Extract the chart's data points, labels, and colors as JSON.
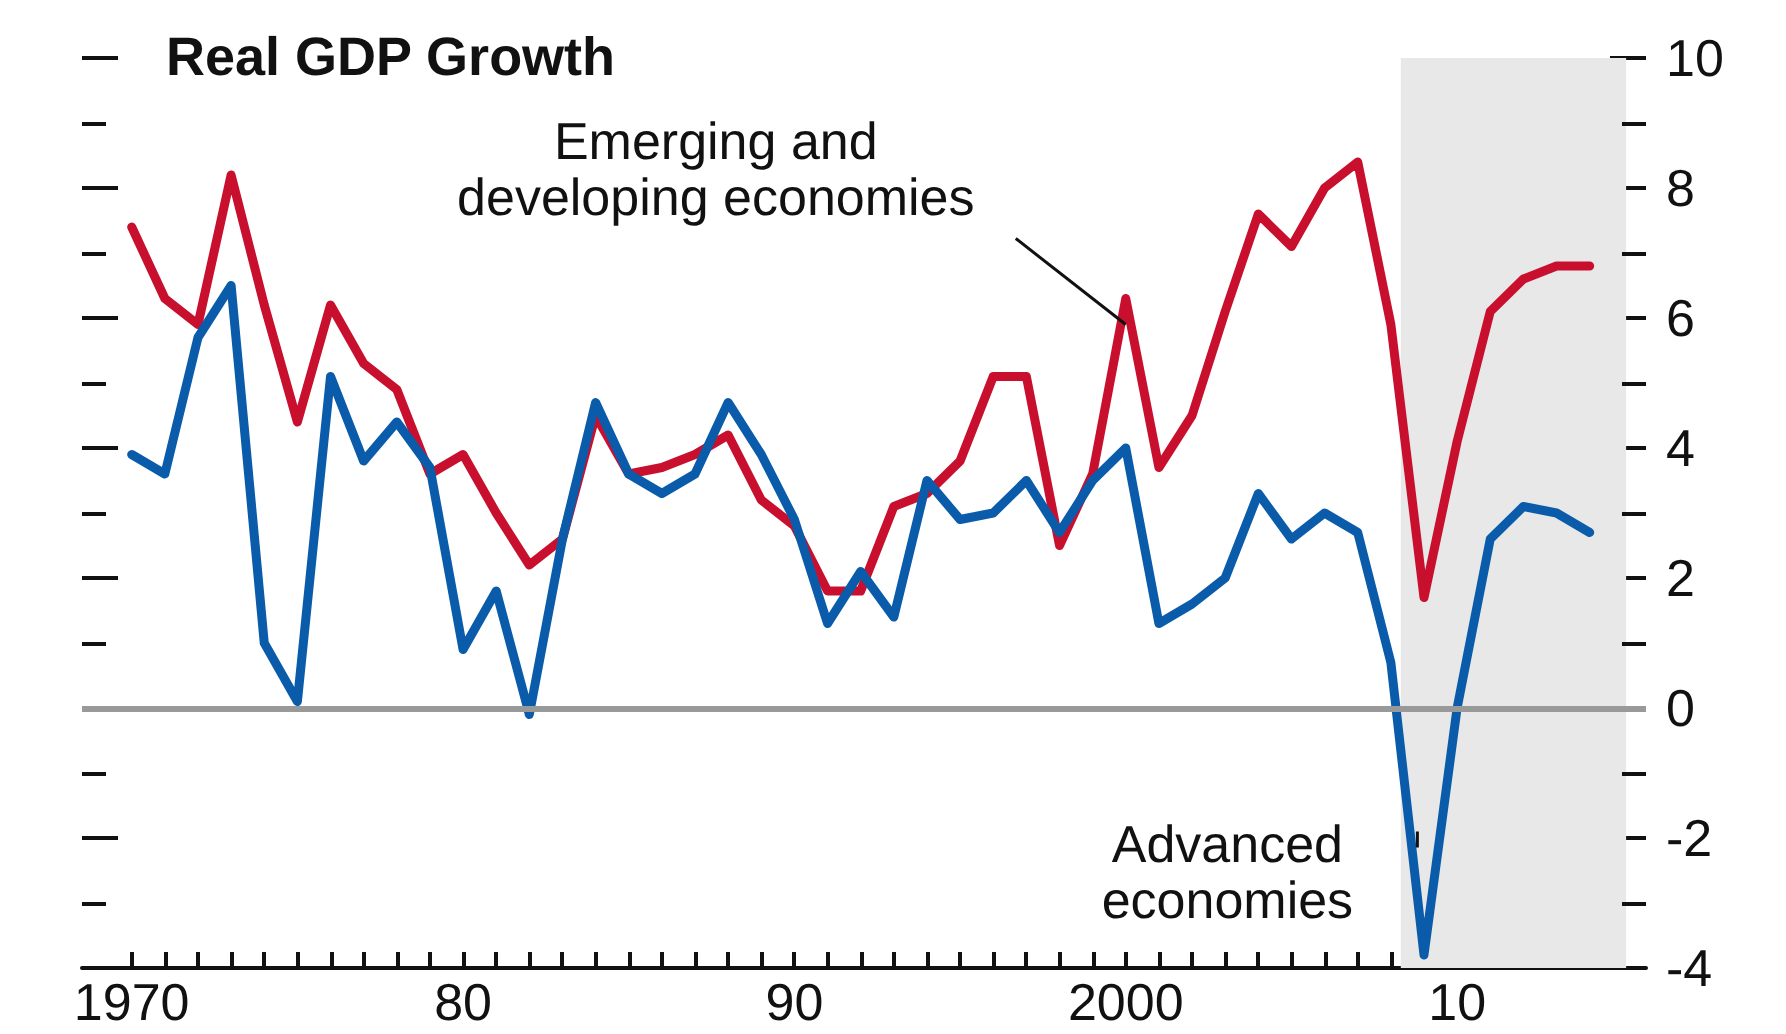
{
  "chart_data": {
    "type": "line",
    "title": "Real GDP Growth",
    "x": [
      1970,
      1971,
      1972,
      1973,
      1974,
      1975,
      1976,
      1977,
      1978,
      1979,
      1980,
      1981,
      1982,
      1983,
      1984,
      1985,
      1986,
      1987,
      1988,
      1989,
      1990,
      1991,
      1992,
      1993,
      1994,
      1995,
      1996,
      1997,
      1998,
      1999,
      2000,
      2001,
      2002,
      2003,
      2004,
      2005,
      2006,
      2007,
      2008,
      2009,
      2010,
      2011,
      2012,
      2013,
      2014
    ],
    "series": [
      {
        "color": "#c8102e",
        "values": [
          7.4,
          6.3,
          5.9,
          8.2,
          6.2,
          4.4,
          6.2,
          5.3,
          4.9,
          3.6,
          3.9,
          3.0,
          2.2,
          2.6,
          4.5,
          3.6,
          3.7,
          3.9,
          4.2,
          3.2,
          2.8,
          1.8,
          1.8,
          3.1,
          3.3,
          3.8,
          5.1,
          5.1,
          2.5,
          3.6,
          6.3,
          3.7,
          4.5,
          6.1,
          7.6,
          7.1,
          8.0,
          8.4,
          5.9,
          1.7,
          4.1,
          6.1,
          6.6,
          6.8,
          6.8
        ]
      },
      {
        "color": "#0a5cab",
        "values": [
          3.9,
          3.6,
          5.7,
          6.5,
          1.0,
          0.1,
          5.1,
          3.8,
          4.4,
          3.7,
          0.9,
          1.8,
          -0.1,
          2.6,
          4.7,
          3.6,
          3.3,
          3.6,
          4.7,
          3.9,
          2.9,
          1.3,
          2.1,
          1.4,
          3.5,
          2.9,
          3.0,
          3.5,
          2.7,
          3.5,
          4.0,
          1.3,
          1.6,
          2.0,
          3.3,
          2.6,
          3.0,
          2.7,
          0.7,
          -3.8,
          0.0,
          2.6,
          3.1,
          3.0,
          2.7
        ]
      }
    ],
    "annotations": [
      {
        "text": "Emerging and\ndeveloping economies",
        "x": 2000,
        "y": 5.9
      },
      {
        "text": "Advanced\neconomies",
        "x": 2008.8,
        "y": -1.9
      }
    ],
    "xlim": [
      1968.5,
      2015.7
    ],
    "xticks": [
      {
        "value": 1970,
        "label": "1970"
      },
      {
        "value": 1971,
        "label": null
      },
      {
        "value": 1972,
        "label": null
      },
      {
        "value": 1973,
        "label": null
      },
      {
        "value": 1974,
        "label": null
      },
      {
        "value": 1975,
        "label": null
      },
      {
        "value": 1976,
        "label": null
      },
      {
        "value": 1977,
        "label": null
      },
      {
        "value": 1978,
        "label": null
      },
      {
        "value": 1979,
        "label": null
      },
      {
        "value": 1980,
        "label": "80"
      },
      {
        "value": 1981,
        "label": null
      },
      {
        "value": 1982,
        "label": null
      },
      {
        "value": 1983,
        "label": null
      },
      {
        "value": 1984,
        "label": null
      },
      {
        "value": 1985,
        "label": null
      },
      {
        "value": 1986,
        "label": null
      },
      {
        "value": 1987,
        "label": null
      },
      {
        "value": 1988,
        "label": null
      },
      {
        "value": 1989,
        "label": null
      },
      {
        "value": 1990,
        "label": "90"
      },
      {
        "value": 1991,
        "label": null
      },
      {
        "value": 1992,
        "label": null
      },
      {
        "value": 1993,
        "label": null
      },
      {
        "value": 1994,
        "label": null
      },
      {
        "value": 1995,
        "label": null
      },
      {
        "value": 1996,
        "label": null
      },
      {
        "value": 1997,
        "label": null
      },
      {
        "value": 1998,
        "label": null
      },
      {
        "value": 1999,
        "label": null
      },
      {
        "value": 2000,
        "label": "2000"
      },
      {
        "value": 2001,
        "label": null
      },
      {
        "value": 2002,
        "label": null
      },
      {
        "value": 2003,
        "label": null
      },
      {
        "value": 2004,
        "label": null
      },
      {
        "value": 2005,
        "label": null
      },
      {
        "value": 2006,
        "label": null
      },
      {
        "value": 2007,
        "label": null
      },
      {
        "value": 2008,
        "label": null
      },
      {
        "value": 2009,
        "label": null
      },
      {
        "value": 2010,
        "label": "10"
      },
      {
        "value": 2011,
        "label": null
      },
      {
        "value": 2012,
        "label": null
      },
      {
        "value": 2013,
        "label": null
      },
      {
        "value": 2014,
        "label": null
      },
      {
        "value": 2015,
        "label": null
      }
    ],
    "ylim": [
      -4,
      10
    ],
    "yticks": [
      -4,
      {
        "value": -3,
        "label": null
      },
      -2,
      {
        "value": -1,
        "label": null
      },
      0,
      {
        "value": 1,
        "label": null
      },
      2,
      {
        "value": 3,
        "label": null
      },
      4,
      {
        "value": 5,
        "label": null
      },
      6,
      {
        "value": 7,
        "label": null
      },
      8,
      {
        "value": 9,
        "label": null
      },
      10
    ],
    "bands": [
      {
        "axis": "x",
        "from": 2008.3,
        "to": 2015.1,
        "color": "#e8e8e8"
      }
    ],
    "ref_lines": [
      {
        "axis": "y",
        "value": 0,
        "color": "#999999"
      }
    ],
    "grid": false,
    "marker": "none",
    "line_style": "solid"
  }
}
